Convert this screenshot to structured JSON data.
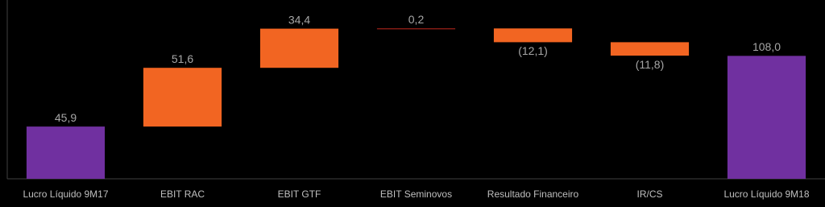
{
  "chart_data": {
    "type": "waterfall",
    "categories": [
      "Lucro Líquido 9M17",
      "EBIT RAC",
      "EBIT GTF",
      "EBIT Seminovos",
      "Resultado Financeiro",
      "IR/CS",
      "Lucro Líquido 9M18"
    ],
    "measure": [
      "absolute",
      "relative",
      "relative",
      "relative",
      "relative",
      "relative",
      "total"
    ],
    "values": [
      45.9,
      51.6,
      34.4,
      0.2,
      -12.1,
      -11.8,
      108.0
    ],
    "value_labels": [
      "45,9",
      "51,6",
      "34,4",
      "0,2",
      "(12,1)",
      "(11,8)",
      "108,0"
    ],
    "colors": [
      "#7030a0",
      "#f26522",
      "#f26522",
      "#c0281e",
      "#f26522",
      "#f26522",
      "#7030a0"
    ],
    "ylim": [
      0,
      150
    ]
  }
}
